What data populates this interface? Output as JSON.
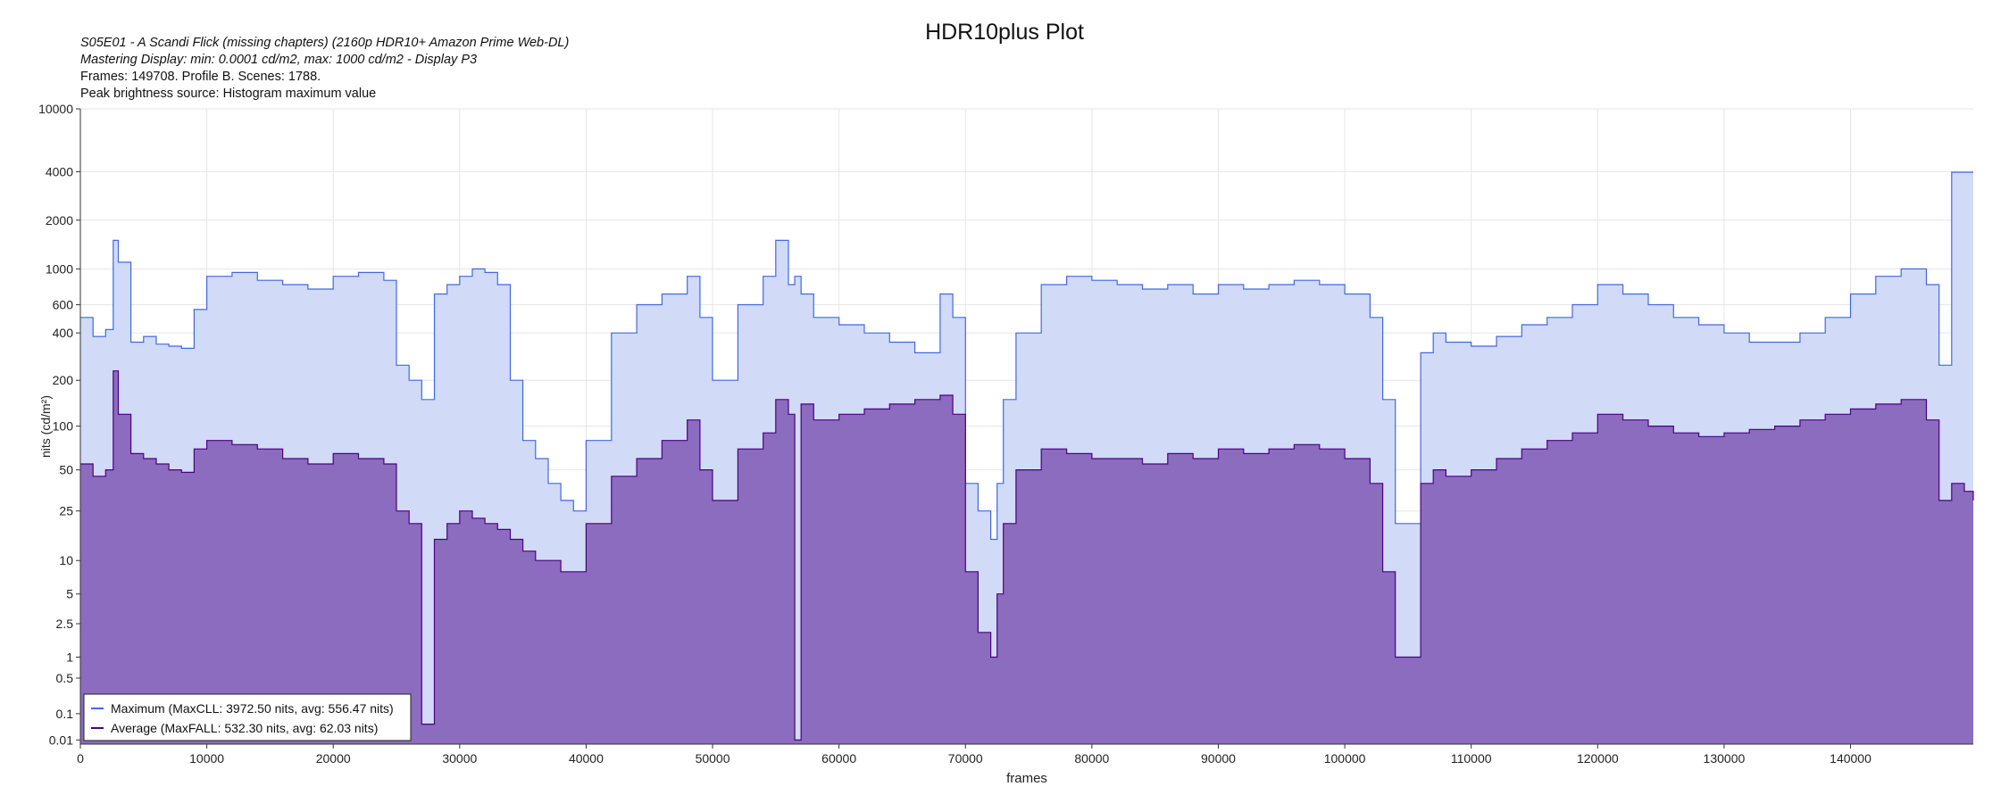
{
  "header": {
    "title": "HDR10plus Plot",
    "subtitle_episode": "S05E01 - A Scandi Flick (missing chapters) (2160p HDR10+ Amazon Prime Web-DL)",
    "subtitle_mastering": "Mastering Display: min: 0.0001 cd/m2, max: 1000 cd/m2 - Display P3",
    "subtitle_frames": "Frames: 149708. Profile B. Scenes: 1788.",
    "subtitle_peak_source": "Peak brightness source: Histogram maximum value"
  },
  "chart_data": {
    "type": "area",
    "title": "HDR10plus Plot",
    "xlabel": "frames",
    "ylabel": "nits (cd/m²)",
    "xlim": [
      0,
      149708
    ],
    "ylim": [
      0.005,
      10000
    ],
    "yscale": "pq",
    "x_ticks": [
      0,
      10000,
      20000,
      30000,
      40000,
      50000,
      60000,
      70000,
      80000,
      90000,
      100000,
      110000,
      120000,
      130000,
      140000
    ],
    "x_tick_labels": [
      "0",
      "10000",
      "20000",
      "30000",
      "40000",
      "50000",
      "60000",
      "70000",
      "80000",
      "90000",
      "100000",
      "110000",
      "120000",
      "130000",
      "140000"
    ],
    "y_ticks": [
      0.01,
      0.1,
      0.5,
      1,
      2.5,
      5,
      10,
      25,
      50,
      100,
      200,
      400,
      600,
      1000,
      2000,
      4000,
      10000
    ],
    "y_tick_labels": [
      "0.01",
      "0.1",
      "0.5",
      "1",
      "2.5",
      "5",
      "10",
      "25",
      "50",
      "100",
      "200",
      "400",
      "600",
      "1000",
      "2000",
      "4000",
      "10000"
    ],
    "grid": true,
    "legend_position": "bottom-left",
    "colors": {
      "maximum_line": "#4169e1",
      "maximum_fill": "#d1daf7",
      "average_line": "#4b0082",
      "average_fill": "#8b6cbf"
    },
    "x": [
      0,
      1000,
      2000,
      2600,
      3000,
      4000,
      5000,
      6000,
      7000,
      8000,
      9000,
      10000,
      12000,
      14000,
      16000,
      18000,
      20000,
      22000,
      24000,
      25000,
      26000,
      27000,
      28000,
      29000,
      30000,
      31000,
      32000,
      33000,
      34000,
      35000,
      36000,
      37000,
      38000,
      39000,
      40000,
      42000,
      44000,
      46000,
      48000,
      49000,
      50000,
      52000,
      54000,
      55000,
      56000,
      56500,
      57000,
      58000,
      60000,
      62000,
      64000,
      66000,
      68000,
      69000,
      70000,
      71000,
      72000,
      72500,
      73000,
      74000,
      76000,
      78000,
      80000,
      82000,
      84000,
      86000,
      88000,
      90000,
      92000,
      94000,
      96000,
      98000,
      100000,
      102000,
      103000,
      104000,
      105000,
      106000,
      107000,
      108000,
      110000,
      112000,
      114000,
      116000,
      118000,
      120000,
      122000,
      124000,
      126000,
      128000,
      130000,
      132000,
      134000,
      136000,
      138000,
      140000,
      142000,
      144000,
      146000,
      147000,
      148000,
      149000,
      149708
    ],
    "series": [
      {
        "name": "Maximum (MaxCLL: 3972.50 nits, avg: 556.47 nits)",
        "values": [
          500,
          380,
          420,
          1500,
          1100,
          350,
          380,
          340,
          330,
          320,
          560,
          900,
          950,
          850,
          800,
          750,
          900,
          950,
          850,
          250,
          200,
          150,
          700,
          800,
          900,
          1000,
          950,
          800,
          200,
          80,
          60,
          40,
          30,
          25,
          80,
          400,
          600,
          700,
          900,
          500,
          200,
          600,
          900,
          1500,
          800,
          900,
          700,
          500,
          450,
          400,
          350,
          300,
          700,
          500,
          40,
          25,
          15,
          40,
          150,
          400,
          800,
          900,
          850,
          800,
          750,
          800,
          700,
          800,
          750,
          800,
          850,
          800,
          700,
          500,
          150,
          20,
          20,
          300,
          400,
          350,
          330,
          380,
          450,
          500,
          600,
          800,
          700,
          600,
          500,
          450,
          400,
          350,
          350,
          400,
          500,
          700,
          900,
          1000,
          800,
          250,
          3972.5,
          3972.5,
          3972.5
        ]
      },
      {
        "name": "Average (MaxFALL: 532.30 nits, avg: 62.03 nits)",
        "values": [
          55,
          45,
          50,
          230,
          120,
          65,
          60,
          55,
          50,
          48,
          70,
          80,
          75,
          70,
          60,
          55,
          65,
          60,
          55,
          25,
          20,
          0.05,
          15,
          20,
          25,
          22,
          20,
          18,
          15,
          12,
          10,
          10,
          8,
          8,
          20,
          45,
          60,
          80,
          110,
          50,
          30,
          70,
          90,
          150,
          120,
          0.01,
          140,
          110,
          120,
          130,
          140,
          150,
          160,
          120,
          8,
          2,
          1,
          5,
          20,
          50,
          70,
          65,
          60,
          60,
          55,
          65,
          60,
          70,
          65,
          70,
          75,
          70,
          60,
          40,
          8,
          1,
          1,
          40,
          50,
          45,
          50,
          60,
          70,
          80,
          90,
          120,
          110,
          100,
          90,
          85,
          90,
          95,
          100,
          110,
          120,
          130,
          140,
          150,
          110,
          30,
          40,
          35,
          30
        ]
      }
    ]
  }
}
